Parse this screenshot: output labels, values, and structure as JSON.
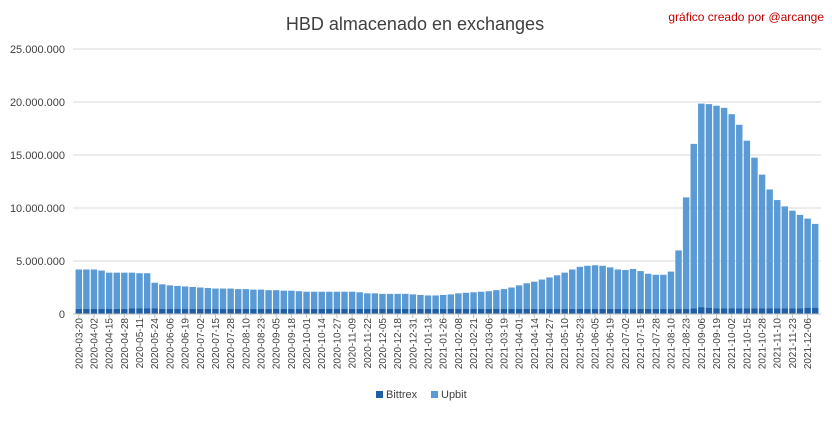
{
  "chart_data": {
    "type": "bar",
    "stacked": true,
    "title": "HBD almacenado en exchanges",
    "credit": "gráfico creado por @arcange",
    "xlabel": "",
    "ylabel": "",
    "ylim": [
      0,
      25000000
    ],
    "y_ticks": [
      0,
      5000000,
      10000000,
      15000000,
      20000000,
      25000000
    ],
    "y_tick_labels": [
      "0",
      "5.000.000",
      "10.000.000",
      "15.000.000",
      "20.000.000",
      "25.000.000"
    ],
    "grid": "horizontal",
    "legend_position": "bottom",
    "x": [
      "2020-03-20",
      "2020-03-27",
      "2020-04-02",
      "2020-04-09",
      "2020-04-15",
      "2020-04-22",
      "2020-04-28",
      "2020-05-05",
      "2020-05-11",
      "2020-05-18",
      "2020-05-24",
      "2020-05-31",
      "2020-06-06",
      "2020-06-13",
      "2020-06-19",
      "2020-06-26",
      "2020-07-02",
      "2020-07-09",
      "2020-07-15",
      "2020-07-22",
      "2020-07-28",
      "2020-08-04",
      "2020-08-10",
      "2020-08-17",
      "2020-08-23",
      "2020-08-30",
      "2020-09-05",
      "2020-09-12",
      "2020-09-18",
      "2020-09-25",
      "2020-10-01",
      "2020-10-08",
      "2020-10-14",
      "2020-10-21",
      "2020-10-27",
      "2020-11-03",
      "2020-11-09",
      "2020-11-16",
      "2020-11-22",
      "2020-11-29",
      "2020-12-05",
      "2020-12-12",
      "2020-12-18",
      "2020-12-25",
      "2020-12-31",
      "2021-01-07",
      "2021-01-13",
      "2021-01-20",
      "2021-01-26",
      "2021-02-02",
      "2021-02-08",
      "2021-02-15",
      "2021-02-21",
      "2021-02-28",
      "2021-03-06",
      "2021-03-13",
      "2021-03-19",
      "2021-03-26",
      "2021-04-01",
      "2021-04-08",
      "2021-04-14",
      "2021-04-21",
      "2021-04-27",
      "2021-05-04",
      "2021-05-10",
      "2021-05-17",
      "2021-05-23",
      "2021-05-30",
      "2021-06-05",
      "2021-06-12",
      "2021-06-19",
      "2021-06-26",
      "2021-07-02",
      "2021-07-09",
      "2021-07-15",
      "2021-07-22",
      "2021-07-28",
      "2021-08-04",
      "2021-08-10",
      "2021-08-17",
      "2021-08-23",
      "2021-08-30",
      "2021-09-06",
      "2021-09-13",
      "2021-09-19",
      "2021-09-26",
      "2021-10-02",
      "2021-10-09",
      "2021-10-15",
      "2021-10-22",
      "2021-10-28",
      "2021-11-04",
      "2021-11-10",
      "2021-11-17",
      "2021-11-23",
      "2021-11-30",
      "2021-12-06",
      "2021-12-13"
    ],
    "x_tick_labels": [
      "2020-03-20",
      "2020-04-02",
      "2020-04-15",
      "2020-04-28",
      "2020-05-11",
      "2020-05-24",
      "2020-06-06",
      "2020-06-19",
      "2020-07-02",
      "2020-07-15",
      "2020-07-28",
      "2020-08-10",
      "2020-08-23",
      "2020-09-05",
      "2020-09-18",
      "2020-10-01",
      "2020-10-14",
      "2020-10-27",
      "2020-11-09",
      "2020-11-22",
      "2020-12-05",
      "2020-12-18",
      "2020-12-31",
      "2021-01-13",
      "2021-01-26",
      "2021-02-08",
      "2021-02-21",
      "2021-03-06",
      "2021-03-19",
      "2021-04-01",
      "2021-04-14",
      "2021-04-27",
      "2021-05-10",
      "2021-05-23",
      "2021-06-05",
      "2021-06-19",
      "2021-07-02",
      "2021-07-15",
      "2021-07-28",
      "2021-08-10",
      "2021-08-23",
      "2021-09-06",
      "2021-09-19",
      "2021-10-02",
      "2021-10-15",
      "2021-10-28",
      "2021-11-10",
      "2021-11-23",
      "2021-12-06"
    ],
    "series": [
      {
        "name": "Bittrex",
        "color": "#1f5fa6",
        "values": [
          500000,
          500000,
          500000,
          500000,
          500000,
          500000,
          500000,
          550000,
          550000,
          550000,
          550000,
          500000,
          500000,
          500000,
          500000,
          500000,
          500000,
          500000,
          500000,
          500000,
          500000,
          500000,
          500000,
          500000,
          500000,
          500000,
          500000,
          500000,
          500000,
          500000,
          500000,
          500000,
          500000,
          500000,
          500000,
          500000,
          500000,
          500000,
          500000,
          500000,
          500000,
          500000,
          500000,
          500000,
          500000,
          500000,
          500000,
          500000,
          500000,
          500000,
          500000,
          500000,
          500000,
          500000,
          500000,
          500000,
          500000,
          500000,
          500000,
          500000,
          500000,
          500000,
          500000,
          500000,
          500000,
          500000,
          500000,
          500000,
          500000,
          500000,
          500000,
          500000,
          500000,
          500000,
          500000,
          500000,
          500000,
          500000,
          500000,
          500000,
          500000,
          550000,
          650000,
          600000,
          550000,
          550000,
          550000,
          550000,
          550000,
          550000,
          550000,
          550000,
          550000,
          550000,
          550000,
          550000,
          600000,
          600000
        ]
      },
      {
        "name": "Upbit",
        "color": "#5b9bd5",
        "values": [
          3700000,
          3700000,
          3700000,
          3600000,
          3400000,
          3400000,
          3400000,
          3350000,
          3300000,
          3300000,
          2400000,
          2300000,
          2200000,
          2150000,
          2100000,
          2050000,
          2000000,
          1950000,
          1900000,
          1900000,
          1900000,
          1850000,
          1850000,
          1800000,
          1800000,
          1750000,
          1750000,
          1700000,
          1700000,
          1650000,
          1600000,
          1600000,
          1600000,
          1600000,
          1600000,
          1600000,
          1600000,
          1550000,
          1450000,
          1450000,
          1400000,
          1400000,
          1400000,
          1400000,
          1350000,
          1300000,
          1250000,
          1250000,
          1300000,
          1350000,
          1450000,
          1500000,
          1550000,
          1600000,
          1650000,
          1750000,
          1850000,
          2000000,
          2200000,
          2400000,
          2550000,
          2750000,
          2950000,
          3150000,
          3400000,
          3700000,
          3950000,
          4050000,
          4100000,
          4050000,
          3900000,
          3700000,
          3650000,
          3750000,
          3550000,
          3300000,
          3200000,
          3200000,
          3500000,
          5500000,
          10500000,
          15500000,
          19200000,
          19200000,
          19100000,
          18900000,
          18300000,
          17300000,
          15800000,
          14200000,
          12600000,
          11200000,
          10200000,
          9600000,
          9200000,
          8800000,
          8400000,
          7900000
        ]
      }
    ]
  }
}
